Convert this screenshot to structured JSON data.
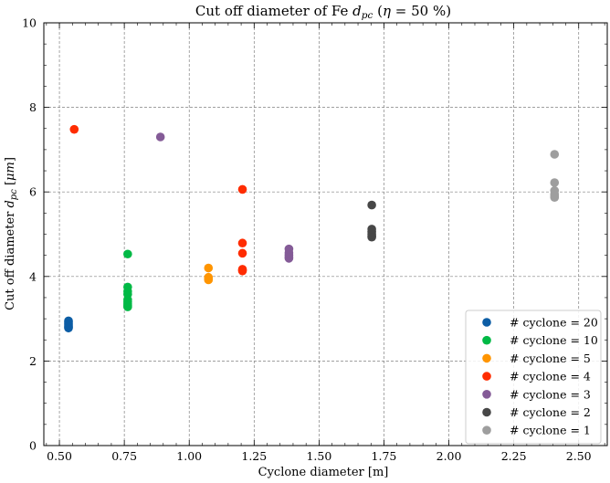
{
  "chart_data": {
    "type": "scatter",
    "title_parts": [
      "Cut off diameter of Fe ",
      "d",
      "pc",
      " (",
      "η",
      " = 50 %)"
    ],
    "xlabel": "Cyclone diameter [m]",
    "ylabel_parts": [
      "Cut off diameter ",
      "d",
      "pc",
      " [",
      "μm",
      "]"
    ],
    "xlim": [
      0.44,
      2.61
    ],
    "ylim": [
      0,
      10
    ],
    "xticks": [
      0.5,
      0.75,
      1.0,
      1.25,
      1.5,
      1.75,
      2.0,
      2.25,
      2.5
    ],
    "xtick_labels": [
      "0.50",
      "0.75",
      "1.00",
      "1.25",
      "1.50",
      "1.75",
      "2.00",
      "2.25",
      "2.50"
    ],
    "yticks": [
      0,
      2,
      4,
      6,
      8,
      10
    ],
    "ytick_labels": [
      "0",
      "2",
      "4",
      "6",
      "8",
      "10"
    ],
    "grid": true,
    "legend_position": "lower-right",
    "series": [
      {
        "name": "# cyclone = 20",
        "color": "#0C5DA5",
        "points": [
          [
            0.535,
            2.78
          ],
          [
            0.535,
            2.8
          ],
          [
            0.535,
            2.82
          ],
          [
            0.535,
            2.85
          ],
          [
            0.535,
            2.88
          ],
          [
            0.535,
            2.92
          ],
          [
            0.535,
            2.95
          ]
        ]
      },
      {
        "name": "# cyclone = 10",
        "color": "#00B945",
        "points": [
          [
            0.763,
            3.28
          ],
          [
            0.763,
            3.31
          ],
          [
            0.763,
            3.35
          ],
          [
            0.763,
            3.4
          ],
          [
            0.763,
            3.45
          ],
          [
            0.763,
            3.58
          ],
          [
            0.763,
            3.65
          ],
          [
            0.763,
            3.75
          ],
          [
            0.763,
            4.53
          ]
        ]
      },
      {
        "name": "# cyclone = 5",
        "color": "#FF9500",
        "points": [
          [
            1.074,
            3.92
          ],
          [
            1.074,
            3.95
          ],
          [
            1.074,
            3.98
          ],
          [
            1.074,
            4.2
          ]
        ]
      },
      {
        "name": "# cyclone = 4",
        "color": "#FF2C00",
        "points": [
          [
            0.557,
            7.48
          ],
          [
            1.205,
            4.13
          ],
          [
            1.205,
            4.15
          ],
          [
            1.205,
            4.17
          ],
          [
            1.205,
            4.55
          ],
          [
            1.205,
            4.79
          ],
          [
            1.205,
            6.06
          ]
        ]
      },
      {
        "name": "# cyclone = 3",
        "color": "#845B97",
        "points": [
          [
            0.889,
            7.3
          ],
          [
            1.384,
            4.43
          ],
          [
            1.384,
            4.46
          ],
          [
            1.384,
            4.5
          ],
          [
            1.384,
            4.56
          ],
          [
            1.384,
            4.65
          ]
        ]
      },
      {
        "name": "# cyclone = 2",
        "color": "#474747",
        "points": [
          [
            1.703,
            4.93
          ],
          [
            1.703,
            4.96
          ],
          [
            1.703,
            5.0
          ],
          [
            1.703,
            5.06
          ],
          [
            1.703,
            5.12
          ],
          [
            1.703,
            5.69
          ]
        ]
      },
      {
        "name": "# cyclone = 1",
        "color": "#9E9E9E",
        "points": [
          [
            2.407,
            5.87
          ],
          [
            2.407,
            5.9
          ],
          [
            2.407,
            5.95
          ],
          [
            2.407,
            6.03
          ],
          [
            2.407,
            6.22
          ],
          [
            2.407,
            6.89
          ]
        ]
      }
    ]
  }
}
